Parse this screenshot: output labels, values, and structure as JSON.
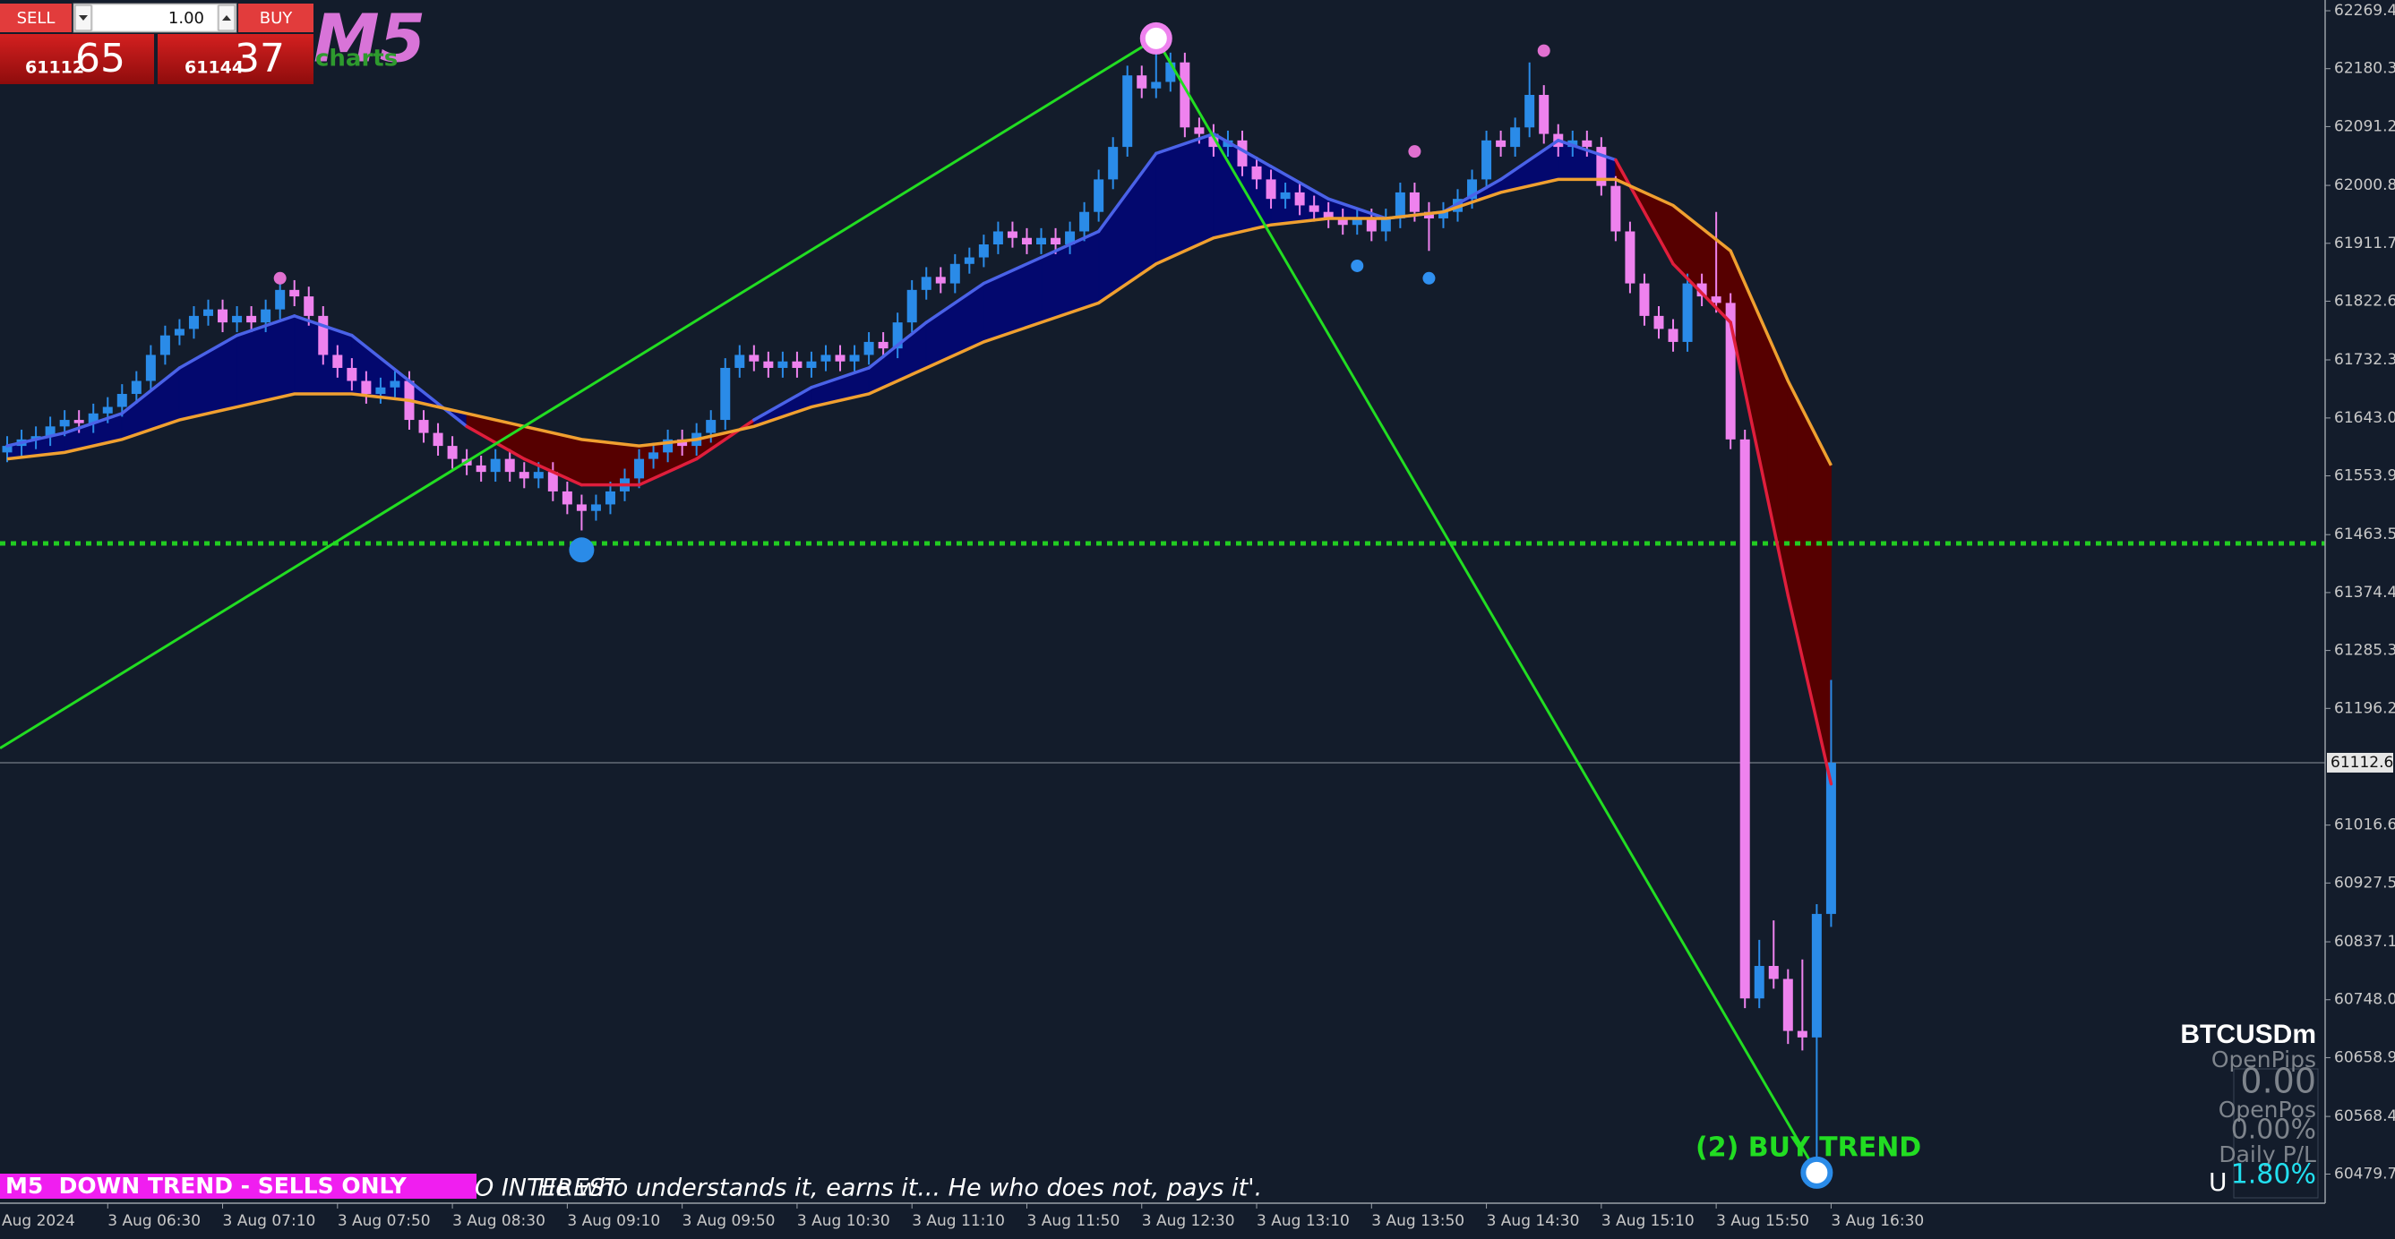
{
  "chart_data": {
    "type": "candlestick",
    "open": [
      61590,
      61600,
      61610,
      61615,
      61630,
      61640,
      61635,
      61650,
      61660,
      61680,
      61700,
      61740,
      61770,
      61780,
      61800,
      61810,
      61790,
      61800,
      61790,
      61810,
      61840,
      61830,
      61800,
      61740,
      61720,
      61700,
      61680,
      61690,
      61700,
      61640,
      61620,
      61600,
      61580,
      61570,
      61560,
      61580,
      61560,
      61550,
      61560,
      61530,
      61510,
      61500,
      61510,
      61530,
      61550,
      61580,
      61590,
      61610,
      61600,
      61620,
      61640,
      61720,
      61740,
      61730,
      61720,
      61730,
      61720,
      61730,
      61740,
      61730,
      61740,
      61760,
      61750,
      61790,
      61840,
      61860,
      61850,
      61880,
      61890,
      61910,
      61930,
      61920,
      61910,
      61920,
      61910,
      61930,
      61960,
      62010,
      62060,
      62170,
      62150,
      62160,
      62190,
      62090,
      62080,
      62060,
      62070,
      62030,
      62010,
      61980,
      61990,
      61970,
      61960,
      61950,
      61940,
      61950,
      61930,
      61950,
      61990,
      61960,
      61950,
      61960,
      61980,
      62010,
      62070,
      62060,
      62090,
      62140,
      62080,
      62060,
      62070,
      62060,
      62000,
      61930,
      61850,
      61800,
      61780,
      61760,
      61850,
      61830,
      61820,
      61610,
      60750,
      60800,
      60780,
      60700,
      60690,
      60880
    ],
    "high": [
      61615,
      61625,
      61630,
      61645,
      61655,
      61655,
      61665,
      61675,
      61695,
      61715,
      61755,
      61785,
      61795,
      61815,
      61825,
      61825,
      61815,
      61815,
      61825,
      61855,
      61855,
      61845,
      61815,
      61755,
      61735,
      61715,
      61705,
      61715,
      61715,
      61655,
      61635,
      61615,
      61595,
      61585,
      61595,
      61595,
      61575,
      61575,
      61575,
      61545,
      61525,
      61525,
      61545,
      61565,
      61595,
      61605,
      61625,
      61625,
      61635,
      61655,
      61735,
      61755,
      61755,
      61745,
      61745,
      61745,
      61745,
      61755,
      61755,
      61755,
      61775,
      61775,
      61805,
      61855,
      61875,
      61875,
      61895,
      61905,
      61925,
      61945,
      61945,
      61935,
      61935,
      61935,
      61945,
      61975,
      62025,
      62075,
      62185,
      62185,
      62225,
      62205,
      62205,
      62105,
      62095,
      62085,
      62085,
      62045,
      62025,
      62005,
      62005,
      61985,
      61975,
      61965,
      61965,
      61965,
      61965,
      62005,
      62005,
      61975,
      61975,
      61995,
      62025,
      62085,
      62085,
      62105,
      62190,
      62155,
      62095,
      62085,
      62085,
      62075,
      62015,
      61945,
      61865,
      61815,
      61795,
      61865,
      61865,
      61960,
      61835,
      61625,
      60840,
      60870,
      60795,
      60810,
      60895,
      61240
    ],
    "low": [
      61575,
      61585,
      61595,
      61600,
      61615,
      61620,
      61620,
      61635,
      61645,
      61665,
      61685,
      61725,
      61755,
      61765,
      61785,
      61775,
      61775,
      61775,
      61775,
      61795,
      61815,
      61785,
      61725,
      61705,
      61685,
      61665,
      61665,
      61675,
      61625,
      61605,
      61585,
      61565,
      61555,
      61545,
      61545,
      61545,
      61535,
      61535,
      61515,
      61495,
      61470,
      61485,
      61495,
      61515,
      61535,
      61565,
      61575,
      61585,
      61585,
      61605,
      61625,
      61705,
      61715,
      61705,
      61705,
      61705,
      61705,
      61715,
      61715,
      61715,
      61725,
      61735,
      61735,
      61775,
      61825,
      61835,
      61835,
      61865,
      61875,
      61895,
      61905,
      61895,
      61895,
      61895,
      61895,
      61915,
      61945,
      61995,
      62045,
      62135,
      62135,
      62145,
      62075,
      62065,
      62045,
      62045,
      62015,
      61995,
      61965,
      61965,
      61955,
      61945,
      61935,
      61925,
      61925,
      61915,
      61915,
      61935,
      61945,
      61900,
      61935,
      61945,
      61965,
      61995,
      62045,
      62045,
      62075,
      62065,
      62045,
      62045,
      62045,
      61985,
      61915,
      61835,
      61785,
      61765,
      61745,
      61745,
      61815,
      61805,
      61595,
      60735,
      60735,
      60765,
      60680,
      60670,
      60500,
      60860
    ],
    "close": [
      61600,
      61610,
      61615,
      61630,
      61640,
      61635,
      61650,
      61660,
      61680,
      61700,
      61740,
      61770,
      61780,
      61800,
      61810,
      61790,
      61800,
      61790,
      61810,
      61840,
      61830,
      61800,
      61740,
      61720,
      61700,
      61680,
      61690,
      61700,
      61640,
      61620,
      61600,
      61580,
      61570,
      61560,
      61580,
      61560,
      61550,
      61560,
      61530,
      61510,
      61500,
      61510,
      61530,
      61550,
      61580,
      61590,
      61610,
      61600,
      61620,
      61640,
      61720,
      61740,
      61730,
      61720,
      61730,
      61720,
      61730,
      61740,
      61730,
      61740,
      61760,
      61750,
      61790,
      61840,
      61860,
      61850,
      61880,
      61890,
      61910,
      61930,
      61920,
      61910,
      61920,
      61910,
      61930,
      61960,
      62010,
      62060,
      62170,
      62150,
      62160,
      62190,
      62090,
      62080,
      62060,
      62070,
      62030,
      62010,
      61980,
      61990,
      61970,
      61960,
      61950,
      61940,
      61950,
      61930,
      61950,
      61990,
      61960,
      61950,
      61960,
      61980,
      62010,
      62070,
      62060,
      62090,
      62140,
      62080,
      62060,
      62070,
      62060,
      62000,
      61930,
      61850,
      61800,
      61780,
      61760,
      61850,
      61830,
      61820,
      61610,
      60750,
      60800,
      60780,
      60700,
      60690,
      60880,
      61112.65
    ],
    "up_color": "#2a8be8",
    "down_color": "#ee82ee",
    "xlim": [
      -0.5,
      161.4
    ],
    "xticks": [
      {
        "value": -1,
        "label": "Aug 2024"
      },
      {
        "value": 7,
        "label": "3 Aug 06:30"
      },
      {
        "value": 15,
        "label": "3 Aug 07:10"
      },
      {
        "value": 23,
        "label": "3 Aug 07:50"
      },
      {
        "value": 31,
        "label": "3 Aug 08:30"
      },
      {
        "value": 39,
        "label": "3 Aug 09:10"
      },
      {
        "value": 47,
        "label": "3 Aug 09:50"
      },
      {
        "value": 55,
        "label": "3 Aug 10:30"
      },
      {
        "value": 63,
        "label": "3 Aug 11:10"
      },
      {
        "value": 71,
        "label": "3 Aug 11:50"
      },
      {
        "value": 79,
        "label": "3 Aug 12:30"
      },
      {
        "value": 87,
        "label": "3 Aug 13:10"
      },
      {
        "value": 95,
        "label": "3 Aug 13:50"
      },
      {
        "value": 103,
        "label": "3 Aug 14:30"
      },
      {
        "value": 111,
        "label": "3 Aug 15:10"
      },
      {
        "value": 119,
        "label": "3 Aug 15:50"
      },
      {
        "value": 127,
        "label": "3 Aug 16:30"
      }
    ],
    "ylim": [
      60435,
      62286
    ],
    "yticks": [
      62269.45,
      62180.35,
      62091.25,
      {
        "value": 62000.8,
        "label": "62000.80"
      },
      {
        "value": 61911.7,
        "label": "61911.70"
      },
      61822.65,
      61732.35,
      {
        "value": 61643,
        "label": "61643.00"
      },
      61553.95,
      {
        "value": 61463.5,
        "label": "61463.50"
      },
      {
        "value": 61374.4,
        "label": "61374.40"
      },
      {
        "value": 61285.3,
        "label": "61285.30"
      },
      {
        "value": 61196.2,
        "label": "61196.20"
      },
      61016.65,
      60927.55,
      {
        "value": 60837.1,
        "label": "60837.10"
      },
      {
        "value": 60748,
        "label": "60748.00"
      },
      {
        "value": 60658.9,
        "label": "60658.90"
      },
      60568.45,
      60479.75
    ],
    "bid": 61112.65,
    "level": {
      "value": 61450,
      "color": "#22cc22"
    },
    "indicators": {
      "x": [
        0,
        4,
        8,
        12,
        16,
        20,
        24,
        28,
        32,
        36,
        40,
        44,
        48,
        52,
        56,
        60,
        64,
        68,
        72,
        76,
        80,
        84,
        88,
        92,
        96,
        100,
        104,
        108,
        112,
        116,
        120,
        124,
        127
      ],
      "fast": [
        61600,
        61620,
        61650,
        61720,
        61770,
        61800,
        61770,
        61700,
        61630,
        61580,
        61540,
        61540,
        61580,
        61640,
        61690,
        61720,
        61790,
        61850,
        61890,
        61930,
        62050,
        62080,
        62030,
        61980,
        61950,
        61960,
        62010,
        62070,
        62040,
        61880,
        61790,
        61370,
        61080
      ],
      "slow": [
        61580,
        61590,
        61610,
        61640,
        61660,
        61680,
        61680,
        61670,
        61650,
        61630,
        61610,
        61600,
        61610,
        61630,
        61660,
        61680,
        61720,
        61760,
        61790,
        61820,
        61880,
        61920,
        61940,
        61950,
        61950,
        61960,
        61990,
        62010,
        62010,
        61970,
        61900,
        61700,
        61570
      ],
      "fast_up_color": "#4a62e8",
      "fast_down_color": "#e01e3c",
      "slow_color": "#f0a030",
      "fill_up": "#03086e",
      "fill_down": "#560000"
    },
    "zigzag": {
      "x": [
        -0.5,
        80,
        126
      ],
      "values": [
        61135,
        62227,
        60482
      ],
      "color": "#22dd22"
    },
    "fractals": [
      {
        "index": 19,
        "price": 61858,
        "kind": "up"
      },
      {
        "index": 98,
        "price": 62053,
        "kind": "up"
      },
      {
        "index": 107,
        "price": 62208,
        "kind": "up"
      },
      {
        "index": 94,
        "price": 61877,
        "kind": "down"
      },
      {
        "index": 99,
        "price": 61858,
        "kind": "down"
      }
    ],
    "fractal_up_color": "#e070d0",
    "fractal_down_color": "#3090f0",
    "swing_marker": {
      "index": 40,
      "price": 61440,
      "color": "#2a8be8"
    }
  },
  "trade_panel": {
    "sell": "SELL",
    "volume": "1.00",
    "buy": "BUY",
    "bid_main": "61112",
    "bid_pips": "65",
    "ask_main": "61144",
    "ask_pips": "37"
  },
  "timeframe": "M5",
  "brand": "charts",
  "banner": "M5  DOWN TREND - SELLS ONLY",
  "ticker_text": "O INTEREST",
  "quote": "He who understands it, earns it... He who does not, pays it'.",
  "signal": "(2) BUY TREND",
  "info_panel": {
    "symbol": "BTCUSDm",
    "open_pips_label": "OpenPips",
    "open_pips": "0.00",
    "open_pos_label": "OpenPos",
    "open_pos": "0.00%",
    "daily_pl_label": "Daily P/L",
    "daily_pl": "1.80%",
    "unit": "U"
  }
}
